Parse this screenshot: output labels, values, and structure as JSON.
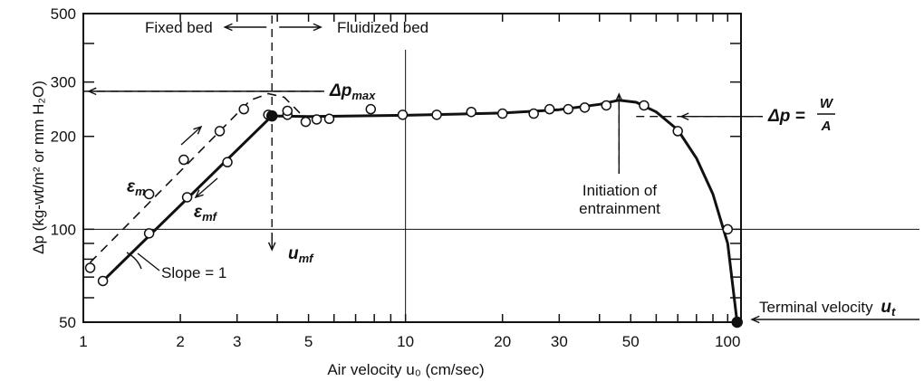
{
  "chart_data": {
    "type": "scatter",
    "x_scale": "log",
    "y_scale": "log",
    "xlim": [
      1,
      110
    ],
    "ylim": [
      50,
      500
    ],
    "grid": false,
    "xlabel": "Air velocity u₀ (cm/sec)",
    "ylabel": "Δp (kg-wt/m² or mm H₂O)",
    "x_ticks": [
      "1",
      "2",
      "3",
      "5",
      "10",
      "20",
      "30",
      "50",
      "100"
    ],
    "x_tick_values": [
      1,
      2,
      3,
      5,
      10,
      20,
      30,
      50,
      100
    ],
    "y_ticks": [
      "50",
      "100",
      "200",
      "300",
      "500"
    ],
    "y_tick_values": [
      50,
      100,
      200,
      300,
      500
    ],
    "series": [
      {
        "key": "open_points_decreasing",
        "marker": "open-circle",
        "x": [
          1.15,
          1.6,
          2.1,
          2.8,
          3.75,
          4.3,
          4.9,
          5.3,
          5.8,
          7.8,
          9.8,
          12.5,
          16,
          20,
          25,
          28,
          32,
          36,
          42,
          55,
          70,
          100
        ],
        "y": [
          68,
          97,
          127,
          165,
          235,
          235,
          223,
          227,
          228,
          245,
          235,
          235,
          240,
          237,
          237,
          245,
          245,
          248,
          252,
          252,
          208,
          100
        ]
      },
      {
        "key": "open_points_increasing",
        "marker": "open-circle",
        "x": [
          1.05,
          1.6,
          2.05,
          2.65,
          3.15,
          4.3
        ],
        "y": [
          75,
          130,
          168,
          208,
          245,
          242
        ]
      },
      {
        "key": "solid_points",
        "marker": "filled-circle",
        "x": [
          3.85,
          107
        ],
        "y": [
          233,
          50
        ]
      }
    ],
    "curves": [
      {
        "key": "solid_curve",
        "style": "solid",
        "x": [
          1.15,
          3.85,
          5,
          10,
          20,
          30,
          40,
          46,
          52,
          60,
          70,
          80,
          90,
          100,
          107
        ],
        "y": [
          68,
          233,
          232,
          234,
          238,
          244,
          254,
          262,
          258,
          240,
          210,
          170,
          130,
          90,
          50
        ]
      },
      {
        "key": "dashed_curve",
        "style": "dashed",
        "x": [
          1.05,
          3.3,
          3.75,
          4.2,
          4.7
        ],
        "y": [
          78,
          262,
          275,
          268,
          238
        ]
      }
    ],
    "annotations": {
      "fixed_bed": "Fixed bed",
      "fluidized_bed": "Fluidized bed",
      "dp_max_symbol": "Δp",
      "dp_max_sub": "max",
      "dp_eq_lhs": "Δp =",
      "dp_eq_num": "W",
      "dp_eq_den": "A",
      "eps_m_symbol": "ε",
      "eps_m_sub": "m",
      "eps_mf_symbol": "ε",
      "eps_mf_sub": "mf",
      "umf_symbol": "u",
      "umf_sub": "mf",
      "slope": "Slope = 1",
      "initiation_line1": "Initiation of",
      "initiation_line2": "entrainment",
      "terminal_label": "Terminal velocity",
      "terminal_symbol": "u",
      "terminal_sub": "t"
    },
    "reference_levels": {
      "dp_max": 280,
      "dp_w_over_a": 232,
      "horizontal_line": 100,
      "vertical_line_x": 10,
      "umf_x": 3.85
    }
  }
}
